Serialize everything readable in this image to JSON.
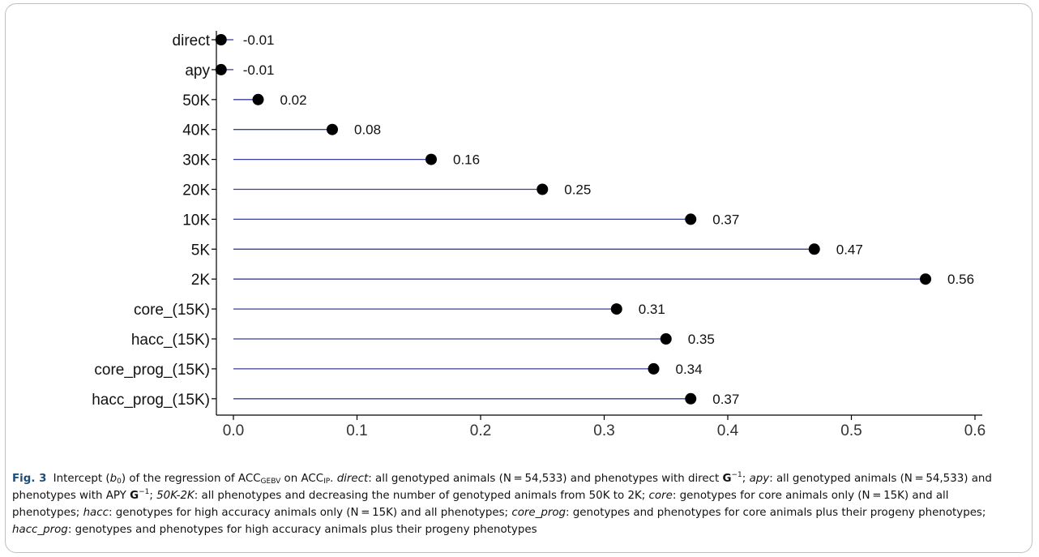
{
  "chart_data": {
    "type": "lollipop",
    "categories": [
      "direct",
      "apy",
      "50K",
      "40K",
      "30K",
      "20K",
      "10K",
      "5K",
      "2K",
      "core_(15K)",
      "hacc_(15K)",
      "core_prog_(15K)",
      "hacc_prog_(15K)"
    ],
    "values": [
      -0.01,
      -0.01,
      0.02,
      0.08,
      0.16,
      0.25,
      0.37,
      0.47,
      0.56,
      0.31,
      0.35,
      0.34,
      0.37
    ],
    "value_labels": [
      "-0.01",
      "-0.01",
      "0.02",
      "0.08",
      "0.16",
      "0.25",
      "0.37",
      "0.47",
      "0.56",
      "0.31",
      "0.35",
      "0.34",
      "0.37"
    ],
    "xticks": [
      0.0,
      0.1,
      0.2,
      0.3,
      0.4,
      0.5,
      0.6
    ],
    "xtick_labels": [
      "0.0",
      "0.1",
      "0.2",
      "0.3",
      "0.4",
      "0.5",
      "0.6"
    ],
    "xlim": [
      -0.018,
      0.608
    ],
    "line_color": "#3a3f9e",
    "point_color": "#000000",
    "grid": false,
    "legend": false
  },
  "caption": {
    "fig_label": "Fig. 3",
    "p1": "Intercept (",
    "b_sym": "b",
    "b_sub": "0",
    "p2": ") of the regression of ACC",
    "sub_gebv": "GEBV",
    "p3": " on ACC",
    "sub_ip": "IP",
    "p4": ". ",
    "t_direct": "direct",
    "p5": ": all genotyped animals (N = 54,533) and phenotypes with direct ",
    "g1": "G",
    "g1_sup": "−1",
    "p6": "; ",
    "t_apy": "apy",
    "p7": ": all genotyped animals (N = 54,533) and phenotypes with APY ",
    "g2": "G",
    "g2_sup": "−1",
    "p8": "; ",
    "t_50k": "50K-2K",
    "p9": ": all phenotypes and decreasing the number of genotyped animals from 50K to 2K; ",
    "t_core": "core",
    "p10": ": genotypes for core animals only (N = 15K) and all phenotypes; ",
    "t_hacc": "hacc",
    "p11": ": genotypes for high accuracy animals only (N = 15K) and all phenotypes; ",
    "t_core_prog": "core_prog",
    "p12": ": genotypes and phenotypes for core animals plus their progeny phenotypes; ",
    "t_hacc_prog": "hacc_prog",
    "p13": ": genotypes and phenotypes for high accuracy animals plus their progeny phenotypes"
  }
}
